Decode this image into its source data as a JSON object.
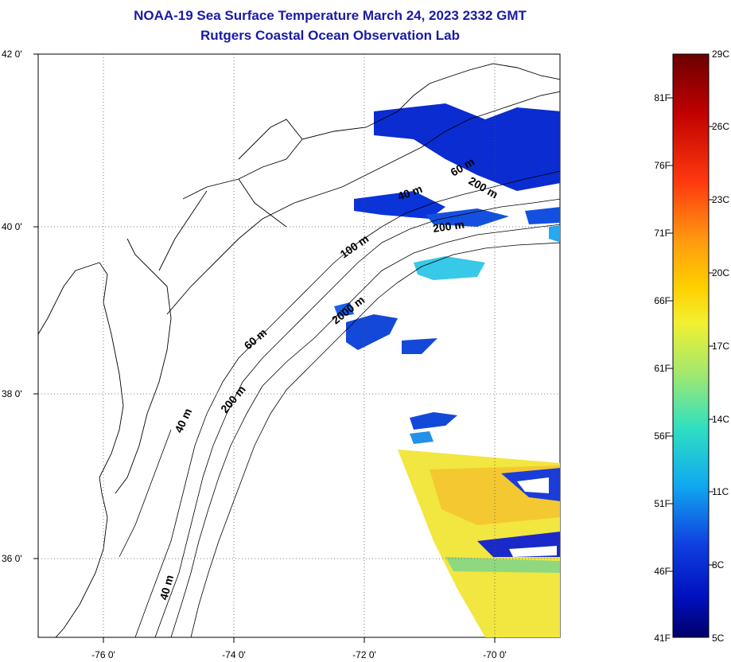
{
  "title": {
    "line1": "NOAA-19 Sea Surface Temperature March 24, 2023 2332 GMT",
    "line2": "Rutgers Coastal Ocean Observation Lab"
  },
  "axes": {
    "lat_labels": [
      "42 0'",
      "40 0'",
      "38 0'",
      "36 0'"
    ],
    "lon_labels": [
      "-76 0'",
      "-74 0'",
      "-72 0'",
      "-70 0'"
    ]
  },
  "contour_labels": [
    "40 m",
    "60 m",
    "100 m",
    "200 m",
    "2000 m",
    "40 m",
    "200 m",
    "40 m",
    "60 m",
    "200 m"
  ],
  "colorbar": {
    "fahrenheit": [
      "81F",
      "76F",
      "71F",
      "66F",
      "61F",
      "56F",
      "51F",
      "46F",
      "41F"
    ],
    "celsius": [
      "29C",
      "26C",
      "23C",
      "20C",
      "17C",
      "14C",
      "11C",
      "8C",
      "5C"
    ],
    "colors": [
      "#6b0000",
      "#d21010",
      "#ff6a10",
      "#ffc000",
      "#f2f030",
      "#b0e860",
      "#40e0b0",
      "#10b8f0",
      "#1050e0",
      "#0010c0",
      "#00006a"
    ]
  }
}
